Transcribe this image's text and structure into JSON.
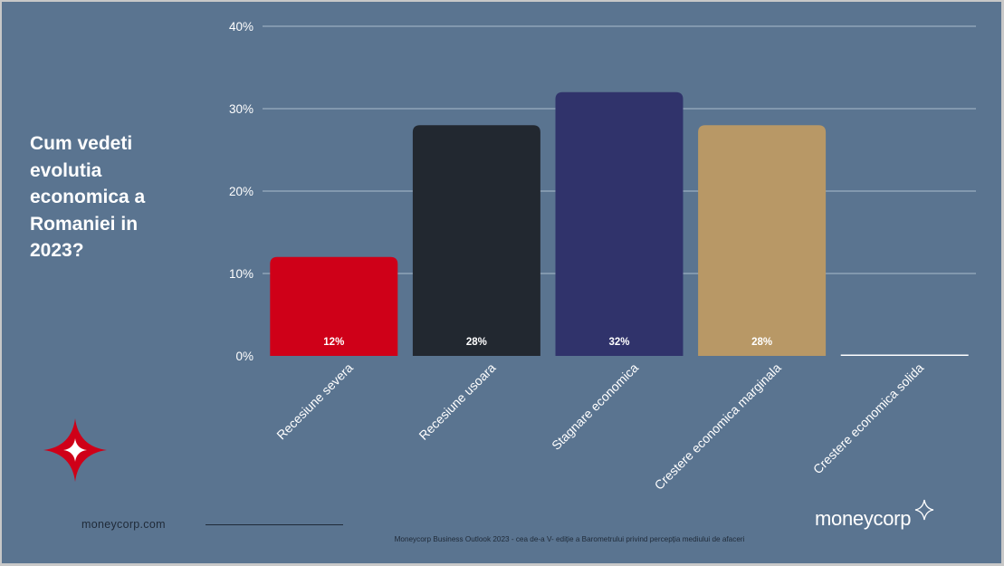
{
  "question_lines": [
    "Cum vedeti",
    "evolutia",
    "economica a",
    "Romaniei in",
    "2023?"
  ],
  "footer": {
    "website": "moneycorp.com",
    "source_note": "Moneycorp Business Outlook 2023 - cea de-a V- ediție a Barometrului privind percepția mediului de afaceri",
    "logo_text": "moneycorp"
  },
  "icons": {
    "brand_mark": "sparkle-star-icon",
    "corner_mark": "four-point-star-icon"
  },
  "colors": {
    "background": "#5a7490",
    "grid": "#a9bccd",
    "text": "#ffffff",
    "footer_text": "#1f2a38"
  },
  "chart_data": {
    "type": "bar",
    "categories": [
      "Recesiune severa",
      "Recesiune usoara",
      "Stagnare economica",
      "Crestere economica marginala",
      "Crestere economica solida"
    ],
    "values": [
      12,
      28,
      32,
      28,
      0
    ],
    "data_labels": [
      "12%",
      "28%",
      "32%",
      "28%",
      ""
    ],
    "bar_colors": [
      "#cf0018",
      "#222830",
      "#30336b",
      "#b89866",
      "#ffffff"
    ],
    "ylim": [
      0,
      40
    ],
    "yticks": [
      0,
      10,
      20,
      30,
      40
    ],
    "ytick_labels": [
      "0%",
      "10%",
      "20%",
      "30%",
      "40%"
    ],
    "grid": true,
    "legend": "none"
  }
}
